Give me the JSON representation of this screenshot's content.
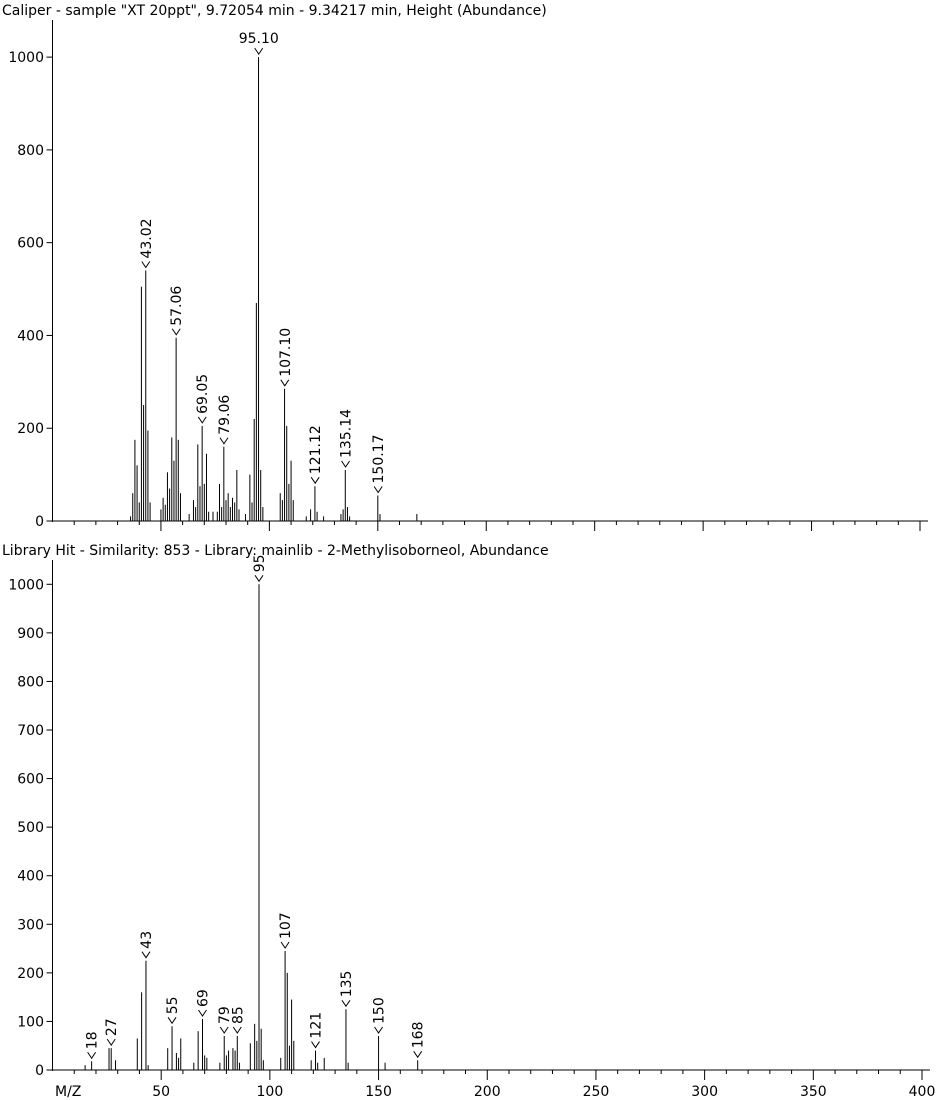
{
  "chart_data": [
    {
      "type": "bar",
      "title": "Caliper - sample \"XT 20ppt\", 9.72054 min - 9.34217 min, Height (Abundance)",
      "xlabel": "",
      "ylabel": "",
      "xlim": [
        0,
        400
      ],
      "ylim": [
        0,
        1080
      ],
      "yticks": [
        0,
        200,
        400,
        600,
        800,
        1000
      ],
      "peaks": [
        [
          36,
          10
        ],
        [
          37,
          60
        ],
        [
          38,
          175
        ],
        [
          39,
          120
        ],
        [
          40,
          40
        ],
        [
          41,
          505
        ],
        [
          42,
          250
        ],
        [
          43,
          540
        ],
        [
          44,
          195
        ],
        [
          45,
          40
        ],
        [
          50,
          25
        ],
        [
          51,
          50
        ],
        [
          52,
          35
        ],
        [
          53,
          105
        ],
        [
          54,
          70
        ],
        [
          55,
          180
        ],
        [
          56,
          130
        ],
        [
          57,
          395
        ],
        [
          58,
          175
        ],
        [
          59,
          60
        ],
        [
          63,
          15
        ],
        [
          65,
          45
        ],
        [
          66,
          30
        ],
        [
          67,
          165
        ],
        [
          68,
          75
        ],
        [
          69,
          205
        ],
        [
          70,
          80
        ],
        [
          71,
          145
        ],
        [
          72,
          20
        ],
        [
          74,
          20
        ],
        [
          76,
          20
        ],
        [
          77,
          80
        ],
        [
          78,
          30
        ],
        [
          79,
          160
        ],
        [
          80,
          45
        ],
        [
          81,
          60
        ],
        [
          82,
          30
        ],
        [
          83,
          50
        ],
        [
          84,
          40
        ],
        [
          85,
          110
        ],
        [
          86,
          25
        ],
        [
          89,
          15
        ],
        [
          91,
          100
        ],
        [
          92,
          40
        ],
        [
          93,
          220
        ],
        [
          94,
          470
        ],
        [
          95,
          1000
        ],
        [
          96,
          110
        ],
        [
          97,
          30
        ],
        [
          105,
          60
        ],
        [
          106,
          45
        ],
        [
          107,
          285
        ],
        [
          108,
          205
        ],
        [
          109,
          80
        ],
        [
          110,
          130
        ],
        [
          111,
          45
        ],
        [
          117,
          10
        ],
        [
          119,
          25
        ],
        [
          121,
          75
        ],
        [
          122,
          20
        ],
        [
          125,
          10
        ],
        [
          133,
          15
        ],
        [
          134,
          25
        ],
        [
          135,
          110
        ],
        [
          136,
          30
        ],
        [
          137,
          10
        ],
        [
          150,
          55
        ],
        [
          151,
          15
        ],
        [
          168,
          15
        ]
      ],
      "labels": [
        {
          "text": "43.02",
          "x": 43.02,
          "y": 540
        },
        {
          "text": "57.06",
          "x": 57.06,
          "y": 395
        },
        {
          "text": "69.05",
          "x": 69.05,
          "y": 205
        },
        {
          "text": "79.06",
          "x": 79.06,
          "y": 160
        },
        {
          "text": "95.10",
          "x": 95.1,
          "y": 1000
        },
        {
          "text": "107.10",
          "x": 107.1,
          "y": 285
        },
        {
          "text": "121.12",
          "x": 121.12,
          "y": 75
        },
        {
          "text": "135.14",
          "x": 135.14,
          "y": 110
        },
        {
          "text": "150.17",
          "x": 150.17,
          "y": 55
        }
      ]
    },
    {
      "type": "bar",
      "title": "Library Hit - Similarity: 853 - Library: mainlib - 2-Methylisoborneol, Abundance",
      "xlabel": "M/Z",
      "ylabel": "",
      "xlim": [
        0,
        400
      ],
      "ylim": [
        0,
        1050
      ],
      "yticks": [
        0,
        100,
        200,
        300,
        400,
        500,
        600,
        700,
        800,
        900,
        1000
      ],
      "xticks": [
        50,
        100,
        150,
        200,
        250,
        300,
        350,
        400
      ],
      "peaks": [
        [
          15,
          10
        ],
        [
          18,
          18
        ],
        [
          26,
          45
        ],
        [
          27,
          45
        ],
        [
          29,
          20
        ],
        [
          39,
          65
        ],
        [
          41,
          160
        ],
        [
          43,
          225
        ],
        [
          44,
          10
        ],
        [
          53,
          45
        ],
        [
          55,
          90
        ],
        [
          57,
          35
        ],
        [
          58,
          25
        ],
        [
          59,
          65
        ],
        [
          65,
          15
        ],
        [
          67,
          80
        ],
        [
          69,
          105
        ],
        [
          70,
          30
        ],
        [
          71,
          25
        ],
        [
          77,
          15
        ],
        [
          79,
          70
        ],
        [
          80,
          30
        ],
        [
          81,
          40
        ],
        [
          83,
          45
        ],
        [
          84,
          40
        ],
        [
          85,
          70
        ],
        [
          86,
          15
        ],
        [
          91,
          55
        ],
        [
          93,
          95
        ],
        [
          94,
          60
        ],
        [
          95,
          1000
        ],
        [
          96,
          85
        ],
        [
          97,
          20
        ],
        [
          105,
          25
        ],
        [
          107,
          245
        ],
        [
          108,
          200
        ],
        [
          109,
          50
        ],
        [
          110,
          145
        ],
        [
          111,
          60
        ],
        [
          119,
          20
        ],
        [
          121,
          40
        ],
        [
          122,
          15
        ],
        [
          125,
          25
        ],
        [
          135,
          125
        ],
        [
          136,
          15
        ],
        [
          150,
          70
        ],
        [
          153,
          15
        ],
        [
          168,
          20
        ]
      ],
      "labels": [
        {
          "text": "18",
          "x": 18,
          "y": 18
        },
        {
          "text": "27",
          "x": 27,
          "y": 45
        },
        {
          "text": "43",
          "x": 43,
          "y": 225
        },
        {
          "text": "55",
          "x": 55,
          "y": 90
        },
        {
          "text": "69",
          "x": 69,
          "y": 105
        },
        {
          "text": "79",
          "x": 79,
          "y": 70
        },
        {
          "text": "85",
          "x": 85,
          "y": 70
        },
        {
          "text": "95",
          "x": 95,
          "y": 1000
        },
        {
          "text": "107",
          "x": 107,
          "y": 245
        },
        {
          "text": "121",
          "x": 121,
          "y": 40
        },
        {
          "text": "135",
          "x": 135,
          "y": 125
        },
        {
          "text": "150",
          "x": 150,
          "y": 70
        },
        {
          "text": "168",
          "x": 168,
          "y": 20
        }
      ]
    }
  ]
}
